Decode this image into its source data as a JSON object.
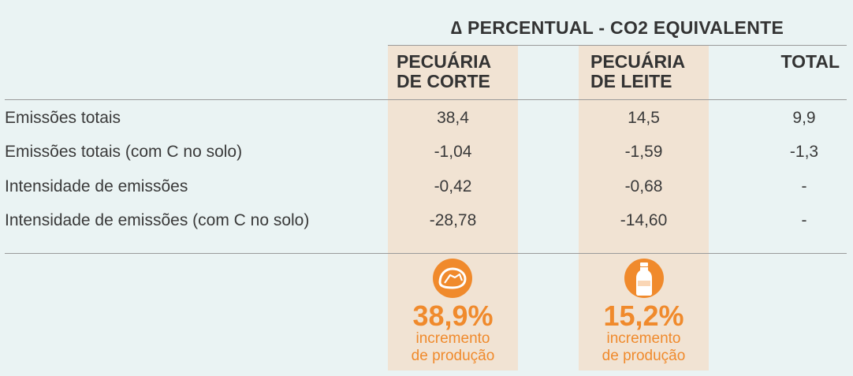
{
  "header": {
    "title": "∆ PERCENTUAL - CO2 EQUIVALENTE",
    "columns": {
      "corte": [
        "PECUÁRIA",
        "DE CORTE"
      ],
      "leite": [
        "PECUÁRIA",
        "DE LEITE"
      ],
      "total": "TOTAL"
    }
  },
  "rows": [
    {
      "label": "Emissões totais",
      "corte": "38,4",
      "leite": "14,5",
      "total": "9,9"
    },
    {
      "label": "Emissões totais (com C no solo)",
      "corte": "-1,04",
      "leite": "-1,59",
      "total": "-1,3"
    },
    {
      "label": "Intensidade de emissões",
      "corte": "-0,42",
      "leite": "-0,68",
      "total": "-"
    },
    {
      "label": "Intensidade de emissões (com C no solo)",
      "corte": "-28,78",
      "leite": "-14,60",
      "total": "-"
    }
  ],
  "production": {
    "corte": {
      "icon": "steak-icon",
      "percent": "38,9%",
      "text": [
        "incremento",
        "de produção"
      ]
    },
    "leite": {
      "icon": "milk-bottle-icon",
      "percent": "15,2%",
      "text": [
        "incremento",
        "de produção"
      ]
    }
  },
  "colors": {
    "accent": "#f08a2c",
    "band": "#f1e3d3",
    "background": "#eaf3f3"
  }
}
